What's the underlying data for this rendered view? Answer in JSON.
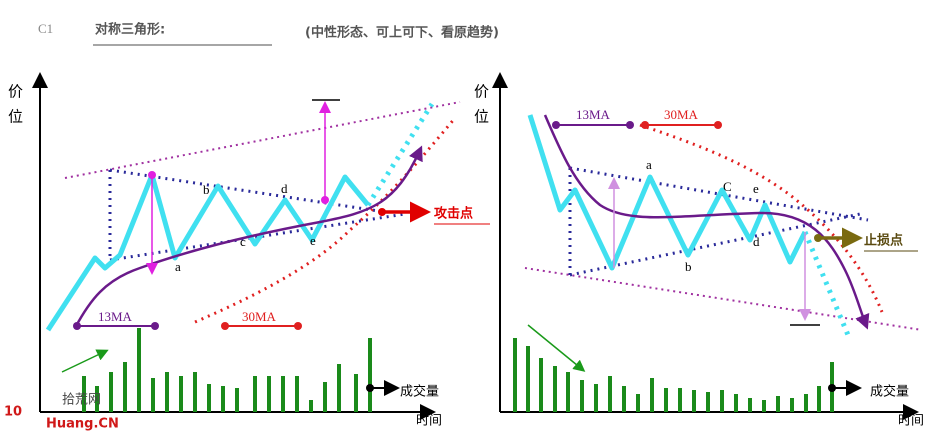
{
  "header": {
    "code": "C1",
    "title": "对称三角形:",
    "subtitle": "(中性形态、可上可下、看原趋势)"
  },
  "panels": [
    {
      "y_axis_label": [
        "价",
        "位"
      ],
      "ma_short": "13MA",
      "ma_long": "30MA",
      "points": [
        "a",
        "b",
        "c",
        "d",
        "e"
      ],
      "signal": "攻击点",
      "volume_label": "成交量",
      "x_axis_label": "时间"
    },
    {
      "y_axis_label": [
        "价",
        "位"
      ],
      "ma_short": "13MA",
      "ma_long": "30MA",
      "points": [
        "a",
        "b",
        "C",
        "e",
        "d"
      ],
      "signal": "止损点",
      "volume_label": "成交量",
      "x_axis_label": "时间"
    }
  ],
  "watermark": {
    "logo": "10",
    "name": "拾荒网",
    "site": "Huang.CN"
  }
}
